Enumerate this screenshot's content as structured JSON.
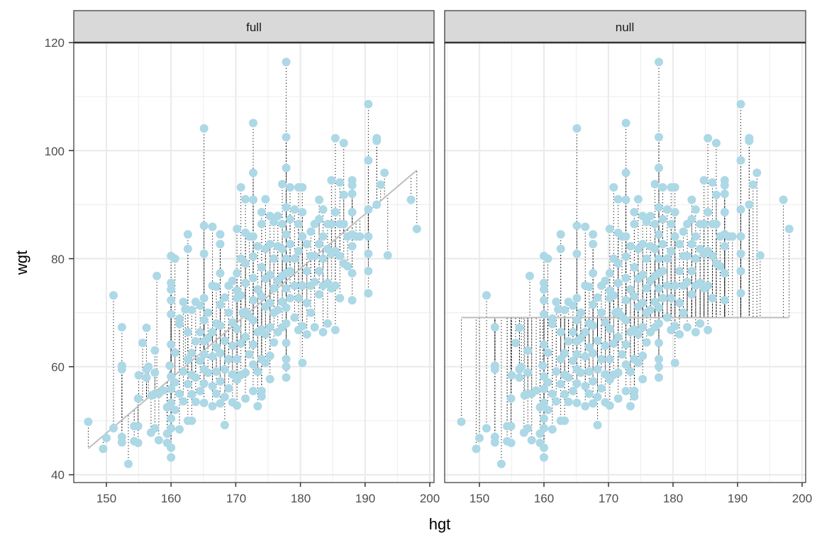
{
  "chart_data": {
    "type": "scatter",
    "title": "",
    "xlabel": "hgt",
    "ylabel": "wgt",
    "xlim": [
      145,
      200.5
    ],
    "ylim": [
      38.5,
      120
    ],
    "x_ticks": [
      150,
      160,
      170,
      180,
      190,
      200
    ],
    "y_ticks": [
      40,
      60,
      80,
      100,
      120
    ],
    "grid": true,
    "legend": null,
    "point_color": "#add8e6",
    "segment_style": "dotted black residual from point to fitted line",
    "facets": [
      {
        "label": "full",
        "fit": {
          "type": "linear",
          "slope": 1.014,
          "intercept": -104.4,
          "x_range": [
            147.2,
            198.0
          ],
          "color": "#bebebe"
        }
      },
      {
        "label": "null",
        "fit": {
          "type": "constant",
          "value": 69.1,
          "x_range": [
            147.2,
            198.0
          ],
          "color": "#bebebe"
        }
      }
    ],
    "points": [
      [
        147.2,
        49.8
      ],
      [
        149.5,
        44.8
      ],
      [
        150.0,
        46.8
      ],
      [
        151.1,
        48.6
      ],
      [
        151.1,
        73.2
      ],
      [
        152.4,
        46.0
      ],
      [
        152.4,
        59.5
      ],
      [
        152.4,
        60.2
      ],
      [
        152.4,
        67.3
      ],
      [
        152.4,
        47.0
      ],
      [
        153.4,
        42.0
      ],
      [
        154.3,
        49.0
      ],
      [
        154.3,
        46.2
      ],
      [
        154.9,
        45.9
      ],
      [
        154.9,
        49.0
      ],
      [
        154.9,
        54.1
      ],
      [
        155.0,
        58.4
      ],
      [
        155.6,
        64.4
      ],
      [
        156.2,
        58.0
      ],
      [
        156.2,
        59.5
      ],
      [
        156.2,
        67.2
      ],
      [
        156.5,
        60.0
      ],
      [
        156.9,
        47.8
      ],
      [
        157.0,
        54.7
      ],
      [
        157.5,
        63.0
      ],
      [
        157.5,
        55.0
      ],
      [
        157.5,
        48.6
      ],
      [
        157.5,
        58.9
      ],
      [
        157.8,
        76.8
      ],
      [
        158.1,
        55.0
      ],
      [
        158.1,
        46.4
      ],
      [
        158.8,
        55.6
      ],
      [
        159.4,
        52.5
      ],
      [
        159.4,
        47.6
      ],
      [
        159.4,
        45.9
      ],
      [
        159.8,
        60.2
      ],
      [
        160.0,
        80.5
      ],
      [
        160.0,
        75.5
      ],
      [
        160.0,
        74.3
      ],
      [
        160.0,
        72.3
      ],
      [
        160.0,
        69.7
      ],
      [
        160.0,
        64.1
      ],
      [
        160.0,
        58.2
      ],
      [
        160.0,
        55.9
      ],
      [
        160.0,
        53.3
      ],
      [
        160.0,
        50.4
      ],
      [
        160.0,
        48.6
      ],
      [
        160.0,
        45.0
      ],
      [
        160.0,
        43.2
      ],
      [
        160.6,
        80.0
      ],
      [
        160.6,
        62.6
      ],
      [
        160.6,
        57.1
      ],
      [
        160.6,
        52.0
      ],
      [
        161.3,
        68.9
      ],
      [
        161.3,
        67.9
      ],
      [
        161.3,
        55.0
      ],
      [
        161.3,
        48.4
      ],
      [
        161.9,
        72.0
      ],
      [
        161.9,
        59.1
      ],
      [
        161.9,
        53.6
      ],
      [
        162.2,
        70.6
      ],
      [
        162.6,
        84.5
      ],
      [
        162.6,
        81.8
      ],
      [
        162.6,
        66.4
      ],
      [
        162.6,
        61.4
      ],
      [
        162.6,
        56.8
      ],
      [
        162.6,
        50.0
      ],
      [
        163.2,
        70.5
      ],
      [
        163.2,
        62.5
      ],
      [
        163.2,
        58.5
      ],
      [
        163.2,
        54.9
      ],
      [
        163.2,
        50.0
      ],
      [
        163.8,
        72.0
      ],
      [
        163.8,
        64.7
      ],
      [
        163.8,
        58.0
      ],
      [
        163.8,
        53.5
      ],
      [
        164.5,
        71.3
      ],
      [
        164.5,
        66.4
      ],
      [
        164.5,
        61.1
      ],
      [
        164.5,
        55.5
      ],
      [
        165.1,
        104.1
      ],
      [
        165.1,
        86.1
      ],
      [
        165.1,
        80.9
      ],
      [
        165.1,
        72.7
      ],
      [
        165.1,
        68.6
      ],
      [
        165.1,
        64.7
      ],
      [
        165.1,
        62.3
      ],
      [
        165.1,
        59.5
      ],
      [
        165.1,
        56.9
      ],
      [
        165.1,
        53.3
      ],
      [
        165.7,
        70.0
      ],
      [
        165.7,
        65.3
      ],
      [
        165.7,
        58.9
      ],
      [
        166.4,
        85.9
      ],
      [
        166.4,
        75.0
      ],
      [
        166.4,
        66.4
      ],
      [
        166.4,
        61.9
      ],
      [
        166.4,
        56.4
      ],
      [
        166.4,
        52.7
      ],
      [
        167.0,
        74.8
      ],
      [
        167.0,
        68.0
      ],
      [
        167.0,
        63.6
      ],
      [
        167.0,
        59.1
      ],
      [
        167.0,
        55.0
      ],
      [
        167.6,
        84.5
      ],
      [
        167.6,
        82.7
      ],
      [
        167.6,
        77.3
      ],
      [
        167.6,
        71.5
      ],
      [
        167.6,
        67.6
      ],
      [
        167.6,
        62.5
      ],
      [
        167.6,
        57.3
      ],
      [
        167.6,
        53.2
      ],
      [
        168.3,
        72.8
      ],
      [
        168.3,
        64.8
      ],
      [
        168.3,
        59.5
      ],
      [
        168.3,
        54.4
      ],
      [
        168.3,
        49.2
      ],
      [
        168.9,
        75.0
      ],
      [
        168.9,
        70.0
      ],
      [
        168.9,
        61.4
      ],
      [
        168.9,
        56.0
      ],
      [
        169.5,
        75.9
      ],
      [
        169.5,
        68.2
      ],
      [
        169.5,
        63.9
      ],
      [
        169.5,
        58.6
      ],
      [
        169.5,
        53.4
      ],
      [
        170.2,
        85.5
      ],
      [
        170.2,
        77.3
      ],
      [
        170.2,
        74.1
      ],
      [
        170.2,
        72.7
      ],
      [
        170.2,
        67.0
      ],
      [
        170.2,
        61.4
      ],
      [
        170.2,
        57.6
      ],
      [
        170.2,
        52.8
      ],
      [
        170.8,
        93.2
      ],
      [
        170.8,
        80.0
      ],
      [
        170.8,
        73.2
      ],
      [
        170.8,
        64.3
      ],
      [
        170.8,
        58.5
      ],
      [
        171.1,
        70.0
      ],
      [
        171.5,
        91.0
      ],
      [
        171.5,
        84.8
      ],
      [
        171.5,
        79.1
      ],
      [
        171.5,
        75.5
      ],
      [
        171.5,
        70.2
      ],
      [
        171.5,
        65.5
      ],
      [
        171.5,
        58.9
      ],
      [
        171.5,
        54.1
      ],
      [
        172.1,
        84.1
      ],
      [
        172.1,
        69.3
      ],
      [
        172.1,
        62.3
      ],
      [
        172.7,
        105.1
      ],
      [
        172.7,
        95.9
      ],
      [
        172.7,
        90.9
      ],
      [
        172.7,
        84.1
      ],
      [
        172.7,
        80.4
      ],
      [
        172.7,
        76.4
      ],
      [
        172.7,
        72.3
      ],
      [
        172.7,
        68.6
      ],
      [
        172.7,
        64.1
      ],
      [
        172.7,
        60.4
      ],
      [
        172.7,
        55.5
      ],
      [
        173.4,
        82.3
      ],
      [
        173.4,
        74.3
      ],
      [
        173.4,
        66.4
      ],
      [
        173.4,
        59.1
      ],
      [
        173.4,
        52.7
      ],
      [
        174.0,
        88.6
      ],
      [
        174.0,
        86.4
      ],
      [
        174.0,
        78.4
      ],
      [
        174.0,
        73.0
      ],
      [
        174.0,
        66.9
      ],
      [
        174.0,
        61.4
      ],
      [
        174.0,
        55.5
      ],
      [
        174.0,
        54.5
      ],
      [
        174.6,
        91.0
      ],
      [
        174.6,
        81.8
      ],
      [
        174.6,
        76.3
      ],
      [
        174.6,
        71.1
      ],
      [
        174.6,
        66.0
      ],
      [
        174.6,
        60.7
      ],
      [
        175.3,
        87.9
      ],
      [
        175.3,
        82.7
      ],
      [
        175.3,
        77.0
      ],
      [
        175.3,
        71.8
      ],
      [
        175.3,
        67.3
      ],
      [
        175.3,
        62.0
      ],
      [
        175.3,
        57.7
      ],
      [
        175.9,
        86.8
      ],
      [
        175.9,
        80.0
      ],
      [
        175.9,
        74.5
      ],
      [
        175.9,
        70.0
      ],
      [
        175.9,
        64.5
      ],
      [
        176.5,
        87.9
      ],
      [
        176.5,
        82.3
      ],
      [
        176.5,
        75.9
      ],
      [
        176.5,
        70.5
      ],
      [
        176.5,
        66.4
      ],
      [
        177.2,
        93.8
      ],
      [
        177.2,
        86.4
      ],
      [
        177.2,
        81.8
      ],
      [
        177.2,
        76.8
      ],
      [
        177.2,
        72.0
      ],
      [
        177.2,
        67.3
      ],
      [
        177.8,
        116.4
      ],
      [
        177.8,
        102.5
      ],
      [
        177.8,
        96.8
      ],
      [
        177.8,
        89.5
      ],
      [
        177.8,
        84.5
      ],
      [
        177.8,
        80.0
      ],
      [
        177.8,
        77.3
      ],
      [
        177.8,
        74.5
      ],
      [
        177.8,
        70.9
      ],
      [
        177.8,
        68.0
      ],
      [
        177.8,
        64.4
      ],
      [
        177.8,
        61.4
      ],
      [
        177.8,
        60.0
      ],
      [
        177.8,
        58.0
      ],
      [
        178.4,
        93.2
      ],
      [
        178.4,
        87.3
      ],
      [
        178.4,
        82.7
      ],
      [
        178.4,
        77.7
      ],
      [
        178.4,
        72.7
      ],
      [
        179.1,
        89.1
      ],
      [
        179.1,
        80.0
      ],
      [
        179.1,
        75.0
      ],
      [
        179.1,
        69.1
      ],
      [
        179.7,
        93.2
      ],
      [
        179.7,
        86.4
      ],
      [
        179.7,
        81.4
      ],
      [
        179.7,
        72.7
      ],
      [
        179.7,
        66.8
      ],
      [
        180.3,
        93.2
      ],
      [
        180.3,
        88.6
      ],
      [
        180.3,
        84.1
      ],
      [
        180.3,
        75.0
      ],
      [
        180.3,
        67.5
      ],
      [
        180.3,
        60.7
      ],
      [
        181.0,
        82.7
      ],
      [
        181.0,
        77.7
      ],
      [
        181.0,
        71.8
      ],
      [
        181.0,
        66.0
      ],
      [
        181.6,
        85.0
      ],
      [
        181.6,
        80.5
      ],
      [
        181.6,
        75.0
      ],
      [
        181.6,
        70.0
      ],
      [
        182.2,
        86.4
      ],
      [
        182.2,
        80.5
      ],
      [
        182.2,
        75.7
      ],
      [
        182.2,
        67.3
      ],
      [
        182.9,
        90.9
      ],
      [
        182.9,
        87.3
      ],
      [
        182.9,
        82.7
      ],
      [
        182.9,
        77.7
      ],
      [
        182.9,
        73.4
      ],
      [
        183.5,
        89.1
      ],
      [
        183.5,
        84.1
      ],
      [
        183.5,
        80.0
      ],
      [
        183.5,
        75.0
      ],
      [
        183.5,
        66.4
      ],
      [
        184.2,
        86.4
      ],
      [
        184.2,
        81.8
      ],
      [
        184.2,
        75.5
      ],
      [
        184.2,
        68.0
      ],
      [
        184.8,
        94.5
      ],
      [
        184.8,
        86.4
      ],
      [
        184.8,
        80.9
      ],
      [
        184.8,
        74.5
      ],
      [
        185.4,
        102.3
      ],
      [
        185.4,
        88.6
      ],
      [
        185.4,
        81.4
      ],
      [
        185.4,
        75.0
      ],
      [
        185.4,
        66.8
      ],
      [
        186.1,
        94.1
      ],
      [
        186.1,
        86.4
      ],
      [
        186.1,
        80.5
      ],
      [
        186.1,
        72.7
      ],
      [
        186.7,
        101.4
      ],
      [
        186.7,
        91.8
      ],
      [
        186.7,
        86.4
      ],
      [
        186.7,
        79.1
      ],
      [
        187.3,
        84.1
      ],
      [
        187.3,
        78.6
      ],
      [
        188.0,
        94.5
      ],
      [
        188.0,
        93.6
      ],
      [
        188.0,
        92.0
      ],
      [
        188.0,
        88.6
      ],
      [
        188.0,
        84.5
      ],
      [
        188.0,
        82.3
      ],
      [
        188.0,
        77.3
      ],
      [
        188.0,
        72.3
      ],
      [
        188.6,
        84.1
      ],
      [
        189.2,
        84.1
      ],
      [
        190.5,
        108.6
      ],
      [
        190.5,
        98.2
      ],
      [
        190.5,
        89.1
      ],
      [
        190.5,
        84.1
      ],
      [
        190.5,
        80.9
      ],
      [
        190.5,
        77.7
      ],
      [
        190.5,
        73.6
      ],
      [
        191.8,
        102.3
      ],
      [
        191.8,
        101.8
      ],
      [
        191.8,
        90.0
      ],
      [
        192.4,
        93.7
      ],
      [
        193.0,
        95.9
      ],
      [
        193.5,
        80.6
      ],
      [
        197.1,
        90.9
      ],
      [
        198.0,
        85.5
      ]
    ]
  },
  "plot": {
    "x_axis_title": "hgt",
    "y_axis_title": "wgt",
    "panels": [
      {
        "strip_label": "full"
      },
      {
        "strip_label": "null"
      }
    ],
    "x_tick_labels": [
      "150",
      "160",
      "170",
      "180",
      "190",
      "200"
    ],
    "y_tick_labels": [
      "40",
      "60",
      "80",
      "100",
      "120"
    ]
  }
}
